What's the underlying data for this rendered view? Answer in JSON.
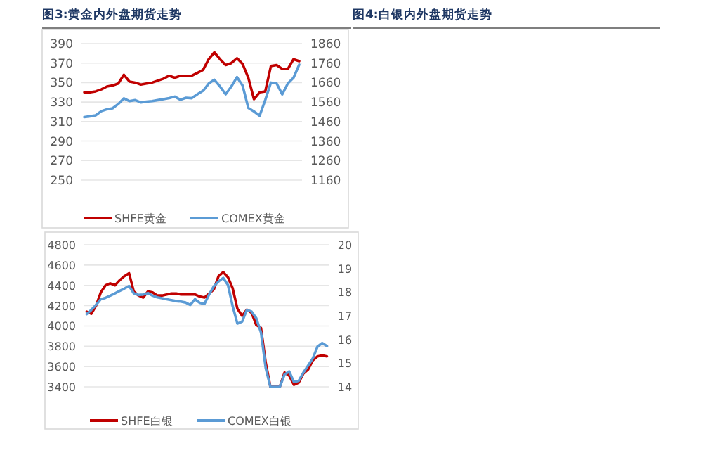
{
  "chart_data": [
    {
      "type": "line",
      "title": "图3:黄金内外盘期货走势",
      "categories": [
        null,
        null,
        null,
        null,
        null,
        null,
        null,
        null,
        null,
        null,
        null,
        null,
        null,
        null,
        null,
        null,
        null,
        null,
        null,
        null,
        null,
        null,
        null,
        null,
        null,
        null,
        null,
        null,
        null,
        null,
        null,
        null,
        null,
        null,
        null,
        null,
        null,
        null,
        null
      ],
      "series": [
        {
          "name": "SHFE黄金",
          "color": "#c00000",
          "axis": "y",
          "values": [
            340,
            340,
            341,
            343,
            346,
            347,
            349,
            358,
            351,
            350,
            348,
            349,
            350,
            352,
            354,
            357,
            355,
            357,
            357,
            357,
            360,
            363,
            374,
            381,
            374,
            368,
            370,
            375,
            369,
            355,
            333,
            340,
            341,
            367,
            368,
            364,
            364,
            374,
            372
          ]
        },
        {
          "name": "COMEX黄金",
          "color": "#5b9bd5",
          "axis": "y2",
          "values": [
            1483,
            1487,
            1492,
            1513,
            1523,
            1528,
            1550,
            1579,
            1565,
            1570,
            1558,
            1562,
            1565,
            1570,
            1575,
            1580,
            1588,
            1572,
            1582,
            1580,
            1600,
            1618,
            1655,
            1675,
            1640,
            1600,
            1640,
            1688,
            1644,
            1530,
            1512,
            1490,
            1571,
            1660,
            1656,
            1600,
            1656,
            1685,
            1752
          ]
        }
      ],
      "ylim": [
        250,
        390
      ],
      "yticks": [
        250,
        270,
        290,
        310,
        330,
        350,
        370,
        390
      ],
      "y2lim": [
        1160,
        1860
      ],
      "y2ticks": [
        1160,
        1260,
        1360,
        1460,
        1560,
        1660,
        1760,
        1860
      ],
      "grid": "y",
      "legend": "bottom"
    },
    {
      "type": "line",
      "categories": [
        null,
        null,
        null,
        null,
        null,
        null,
        null,
        null,
        null,
        null,
        null,
        null,
        null,
        null,
        null,
        null,
        null,
        null,
        null,
        null,
        null,
        null,
        null,
        null,
        null,
        null,
        null,
        null,
        null,
        null,
        null,
        null,
        null,
        null,
        null,
        null,
        null,
        null,
        null,
        null,
        null,
        null,
        null,
        null,
        null,
        null,
        null,
        null,
        null,
        null,
        null,
        null
      ],
      "series": [
        {
          "name": "SHFE白银",
          "color": "#c00000",
          "axis": "y",
          "values": [
            4140,
            4120,
            4200,
            4330,
            4400,
            4420,
            4400,
            4450,
            4490,
            4520,
            4340,
            4300,
            4280,
            4340,
            4330,
            4300,
            4300,
            4310,
            4320,
            4320,
            4310,
            4310,
            4310,
            4310,
            4290,
            4280,
            4320,
            4360,
            4490,
            4530,
            4480,
            4370,
            4170,
            4100,
            4160,
            4130,
            4010,
            3980,
            3640,
            3400,
            3400,
            3400,
            3540,
            3510,
            3420,
            3440,
            3530,
            3570,
            3660,
            3700,
            3710,
            3700
          ]
        },
        {
          "name": "COMEX白银",
          "color": "#5b9bd5",
          "axis": "y2",
          "values": [
            17.07,
            17.25,
            17.46,
            17.7,
            17.76,
            17.85,
            17.95,
            18.05,
            18.15,
            18.26,
            17.95,
            17.88,
            17.9,
            17.96,
            17.85,
            17.78,
            17.74,
            17.7,
            17.66,
            17.62,
            17.6,
            17.56,
            17.46,
            17.7,
            17.55,
            17.5,
            17.9,
            18.25,
            18.45,
            18.6,
            18.3,
            17.4,
            16.67,
            16.75,
            17.25,
            17.18,
            16.9,
            16.3,
            14.8,
            14,
            14,
            14,
            14.52,
            14.65,
            14.2,
            14.25,
            14.6,
            14.9,
            15.2,
            15.7,
            15.85,
            15.72
          ]
        }
      ],
      "ylim": [
        3400,
        4800
      ],
      "yticks": [
        3400,
        3600,
        3800,
        4000,
        4200,
        4400,
        4600,
        4800
      ],
      "y2lim": [
        14,
        20
      ],
      "y2ticks": [
        14,
        15,
        16,
        17,
        18,
        19,
        20
      ],
      "grid": "y",
      "legend": "bottom"
    },
    {
      "type": "other",
      "title": "图4:白银内外盘期货走势"
    }
  ]
}
